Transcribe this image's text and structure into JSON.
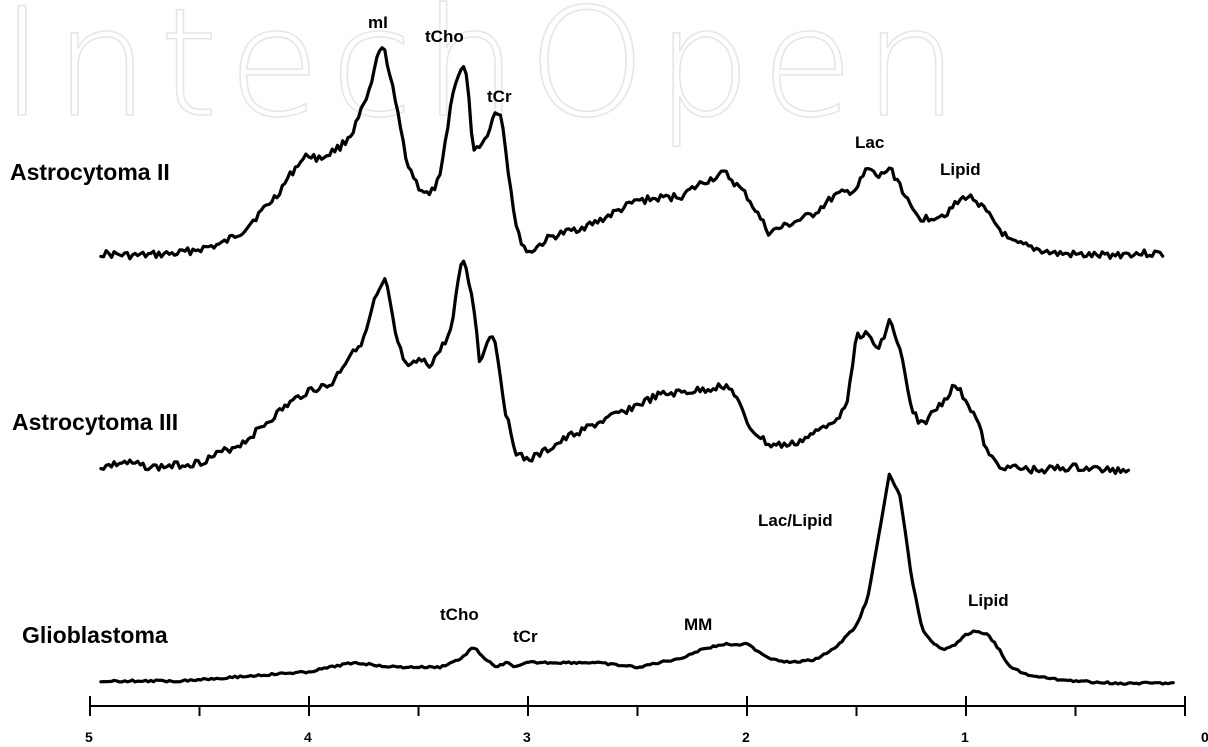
{
  "watermark": "IntechOpen",
  "chart_data": {
    "type": "line",
    "title": "",
    "xlabel": "",
    "ylabel": "",
    "x_reversed": true,
    "xlim": [
      5,
      0
    ],
    "x_ticks": [
      5,
      4,
      3,
      2,
      1,
      0
    ],
    "x_tick_labels": [
      "5",
      "4",
      "3",
      "2",
      "1",
      "0"
    ],
    "grid": false,
    "legend": "none",
    "series": [
      {
        "name": "Astrocytoma II",
        "x": [
          4.95,
          4.8,
          4.6,
          4.4,
          4.3,
          4.15,
          4.05,
          4.0,
          3.95,
          3.85,
          3.8,
          3.72,
          3.68,
          3.65,
          3.6,
          3.55,
          3.5,
          3.45,
          3.4,
          3.35,
          3.3,
          3.28,
          3.25,
          3.2,
          3.15,
          3.12,
          3.1,
          3.05,
          3.0,
          2.9,
          2.7,
          2.5,
          2.3,
          2.2,
          2.1,
          2.0,
          1.9,
          1.8,
          1.7,
          1.6,
          1.5,
          1.45,
          1.4,
          1.35,
          1.3,
          1.25,
          1.2,
          1.1,
          1.0,
          0.95,
          0.9,
          0.8,
          0.6,
          0.4,
          0.25,
          0.1
        ],
        "y": [
          0.05,
          0.04,
          0.05,
          0.09,
          0.15,
          0.3,
          0.44,
          0.48,
          0.46,
          0.52,
          0.58,
          0.76,
          0.94,
          0.92,
          0.68,
          0.44,
          0.34,
          0.3,
          0.38,
          0.72,
          0.88,
          0.82,
          0.5,
          0.54,
          0.66,
          0.66,
          0.48,
          0.14,
          0.05,
          0.12,
          0.18,
          0.28,
          0.3,
          0.36,
          0.4,
          0.3,
          0.14,
          0.18,
          0.22,
          0.3,
          0.33,
          0.42,
          0.38,
          0.42,
          0.35,
          0.24,
          0.2,
          0.22,
          0.3,
          0.28,
          0.22,
          0.1,
          0.05,
          0.04,
          0.05,
          0.05
        ]
      },
      {
        "name": "Astrocytoma III",
        "x": [
          4.95,
          4.85,
          4.7,
          4.5,
          4.3,
          4.1,
          4.0,
          3.9,
          3.8,
          3.75,
          3.7,
          3.65,
          3.6,
          3.55,
          3.5,
          3.45,
          3.4,
          3.35,
          3.3,
          3.25,
          3.22,
          3.18,
          3.15,
          3.1,
          3.05,
          3.0,
          2.95,
          2.8,
          2.6,
          2.4,
          2.2,
          2.1,
          2.05,
          2.0,
          1.9,
          1.8,
          1.7,
          1.55,
          1.5,
          1.45,
          1.4,
          1.35,
          1.3,
          1.25,
          1.2,
          1.1,
          1.05,
          1.0,
          0.95,
          0.9,
          0.85,
          0.8,
          0.7,
          0.5,
          0.35,
          0.25
        ],
        "y": [
          0.05,
          0.07,
          0.05,
          0.07,
          0.15,
          0.3,
          0.36,
          0.38,
          0.52,
          0.56,
          0.72,
          0.8,
          0.56,
          0.44,
          0.48,
          0.46,
          0.52,
          0.6,
          0.9,
          0.72,
          0.46,
          0.58,
          0.56,
          0.26,
          0.1,
          0.08,
          0.1,
          0.18,
          0.26,
          0.34,
          0.36,
          0.38,
          0.34,
          0.22,
          0.14,
          0.14,
          0.18,
          0.28,
          0.58,
          0.58,
          0.52,
          0.64,
          0.52,
          0.28,
          0.22,
          0.32,
          0.38,
          0.32,
          0.24,
          0.1,
          0.06,
          0.05,
          0.04,
          0.05,
          0.04,
          0.04
        ]
      },
      {
        "name": "Glioblastoma",
        "x": [
          4.95,
          4.6,
          4.3,
          4.0,
          3.8,
          3.6,
          3.4,
          3.3,
          3.25,
          3.2,
          3.15,
          3.1,
          3.05,
          3.0,
          2.9,
          2.7,
          2.5,
          2.3,
          2.2,
          2.1,
          2.0,
          1.9,
          1.8,
          1.7,
          1.6,
          1.5,
          1.45,
          1.4,
          1.35,
          1.3,
          1.25,
          1.2,
          1.15,
          1.1,
          1.05,
          1.0,
          0.95,
          0.9,
          0.85,
          0.8,
          0.7,
          0.5,
          0.3,
          0.05
        ],
        "y": [
          0.0,
          0.0,
          0.02,
          0.04,
          0.08,
          0.06,
          0.06,
          0.1,
          0.15,
          0.1,
          0.06,
          0.08,
          0.06,
          0.08,
          0.08,
          0.08,
          0.06,
          0.1,
          0.14,
          0.16,
          0.16,
          0.1,
          0.08,
          0.09,
          0.14,
          0.24,
          0.36,
          0.62,
          0.9,
          0.8,
          0.46,
          0.22,
          0.16,
          0.14,
          0.16,
          0.2,
          0.22,
          0.2,
          0.14,
          0.06,
          0.02,
          0.0,
          -0.01,
          -0.01
        ]
      }
    ],
    "annotations": [
      {
        "series": "Astrocytoma II",
        "text": "mI",
        "x": 3.68
      },
      {
        "series": "Astrocytoma II",
        "text": "tCho",
        "x": 3.33
      },
      {
        "series": "Astrocytoma II",
        "text": "tCr",
        "x": 3.05
      },
      {
        "series": "Astrocytoma II",
        "text": "Lac",
        "x": 1.45
      },
      {
        "series": "Astrocytoma II",
        "text": "Lipid",
        "x": 1.0
      },
      {
        "series": "Glioblastoma",
        "text": "Lac/Lipid",
        "x": 1.48
      },
      {
        "series": "Glioblastoma",
        "text": "Lipid",
        "x": 0.92
      },
      {
        "series": "Glioblastoma",
        "text": "tCho",
        "x": 3.28
      },
      {
        "series": "Glioblastoma",
        "text": "tCr",
        "x": 3.0
      },
      {
        "series": "Glioblastoma",
        "text": "MM",
        "x": 2.15
      }
    ]
  }
}
